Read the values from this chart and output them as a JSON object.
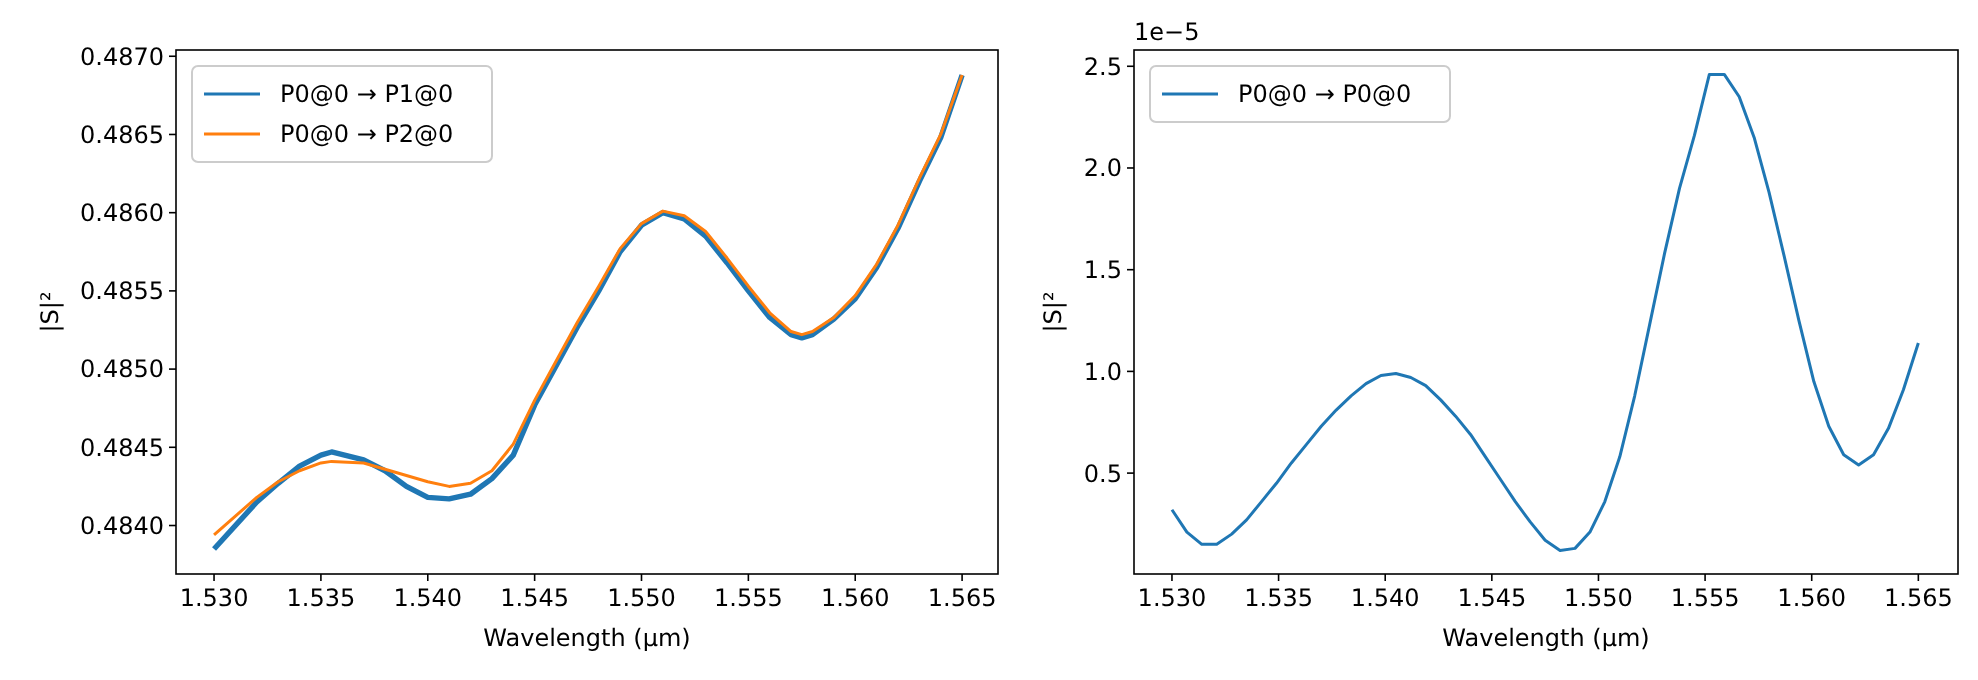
{
  "chart_data": [
    {
      "type": "line",
      "xlabel": "Wavelength (µm)",
      "ylabel": "|S|²",
      "legend": "top left",
      "grid": false,
      "xlim": [
        1.52822,
        1.56668
      ],
      "ylim": [
        0.48369,
        0.48704
      ],
      "xticks": [
        {
          "value": 1.53,
          "label": "1.530"
        },
        {
          "value": 1.535,
          "label": "1.535"
        },
        {
          "value": 1.54,
          "label": "1.540"
        },
        {
          "value": 1.545,
          "label": "1.545"
        },
        {
          "value": 1.55,
          "label": "1.550"
        },
        {
          "value": 1.555,
          "label": "1.555"
        },
        {
          "value": 1.56,
          "label": "1.560"
        },
        {
          "value": 1.565,
          "label": "1.565"
        }
      ],
      "yticks": [
        {
          "value": 0.484,
          "label": "0.4840"
        },
        {
          "value": 0.4845,
          "label": "0.4845"
        },
        {
          "value": 0.485,
          "label": "0.4850"
        },
        {
          "value": 0.4855,
          "label": "0.4855"
        },
        {
          "value": 0.486,
          "label": "0.4860"
        },
        {
          "value": 0.4865,
          "label": "0.4865"
        },
        {
          "value": 0.487,
          "label": "0.4870"
        }
      ],
      "x": [
        1.53,
        1.532,
        1.533,
        1.534,
        1.535,
        1.5355,
        1.537,
        1.538,
        1.539,
        1.54,
        1.541,
        1.542,
        1.543,
        1.544,
        1.545,
        1.546,
        1.547,
        1.548,
        1.549,
        1.55,
        1.551,
        1.552,
        1.553,
        1.554,
        1.555,
        1.556,
        1.557,
        1.5575,
        1.558,
        1.559,
        1.56,
        1.561,
        1.562,
        1.563,
        1.564,
        1.565
      ],
      "series": [
        {
          "name": "P0@0 → P1@0",
          "color": "#1f77b4",
          "values": [
            0.48385,
            0.48415,
            0.48427,
            0.48438,
            0.48445,
            0.48447,
            0.48442,
            0.48435,
            0.48425,
            0.48418,
            0.48417,
            0.4842,
            0.4843,
            0.48445,
            0.48477,
            0.48502,
            0.48527,
            0.4855,
            0.48575,
            0.48592,
            0.486,
            0.48596,
            0.48585,
            0.48568,
            0.4855,
            0.48533,
            0.48522,
            0.4852,
            0.48522,
            0.48532,
            0.48545,
            0.48565,
            0.4859,
            0.4862,
            0.48648,
            0.48688
          ]
        },
        {
          "name": "P0@0 → P2@0",
          "color": "#ff7f0e",
          "values": [
            0.48394,
            0.48418,
            0.48428,
            0.48435,
            0.4844,
            0.48441,
            0.4844,
            0.48436,
            0.48432,
            0.48428,
            0.48425,
            0.48427,
            0.48435,
            0.48452,
            0.4848,
            0.48505,
            0.4853,
            0.48553,
            0.48577,
            0.48593,
            0.48601,
            0.48598,
            0.48588,
            0.48571,
            0.48553,
            0.48536,
            0.48524,
            0.48522,
            0.48524,
            0.48533,
            0.48547,
            0.48567,
            0.48592,
            0.48622,
            0.4865,
            0.48688
          ]
        }
      ]
    },
    {
      "type": "line",
      "xlabel": "Wavelength (µm)",
      "ylabel": "|S|²",
      "legend": "top left",
      "grid": false,
      "annotations": [
        "1e−5"
      ],
      "xlim": [
        1.52822,
        1.56686
      ],
      "ylim": [
        0.004,
        2.58
      ],
      "xticks": [
        {
          "value": 1.53,
          "label": "1.530"
        },
        {
          "value": 1.535,
          "label": "1.535"
        },
        {
          "value": 1.54,
          "label": "1.540"
        },
        {
          "value": 1.545,
          "label": "1.545"
        },
        {
          "value": 1.55,
          "label": "1.550"
        },
        {
          "value": 1.555,
          "label": "1.555"
        },
        {
          "value": 1.56,
          "label": "1.560"
        },
        {
          "value": 1.565,
          "label": "1.565"
        }
      ],
      "yticks": [
        0.5,
        {
          "value": 1,
          "label": "1.0"
        },
        1.5,
        {
          "value": 2,
          "label": "2.0"
        },
        2.5
      ],
      "x": [
        1.53,
        1.5307,
        1.5314,
        1.5321,
        1.5328,
        1.5335,
        1.5342,
        1.5349,
        1.5356,
        1.5363,
        1.537,
        1.5377,
        1.5384,
        1.5391,
        1.5398,
        1.5405,
        1.5412,
        1.5419,
        1.5426,
        1.5433,
        1.544,
        1.5447,
        1.5454,
        1.5461,
        1.5468,
        1.5475,
        1.5482,
        1.5489,
        1.5496,
        1.5503,
        1.551,
        1.5517,
        1.5524,
        1.5531,
        1.5538,
        1.5545,
        1.5552,
        1.5559,
        1.5566,
        1.5573,
        1.558,
        1.5587,
        1.5594,
        1.5601,
        1.5608,
        1.5615,
        1.5622,
        1.5629,
        1.5636,
        1.5643,
        1.565
      ],
      "series": [
        {
          "name": "P0@0 → P0@0",
          "color": "#1f77b4",
          "values": [
            0.32,
            0.21,
            0.15,
            0.15,
            0.2,
            0.27,
            0.36,
            0.45,
            0.55,
            0.64,
            0.73,
            0.81,
            0.88,
            0.94,
            0.98,
            0.99,
            0.97,
            0.93,
            0.86,
            0.78,
            0.69,
            0.58,
            0.47,
            0.36,
            0.26,
            0.17,
            0.12,
            0.13,
            0.21,
            0.36,
            0.58,
            0.88,
            1.23,
            1.58,
            1.9,
            2.16,
            2.46,
            2.46,
            2.35,
            2.15,
            1.88,
            1.57,
            1.25,
            0.95,
            0.73,
            0.59,
            0.54,
            0.59,
            0.72,
            0.91,
            1.14
          ]
        }
      ]
    }
  ]
}
